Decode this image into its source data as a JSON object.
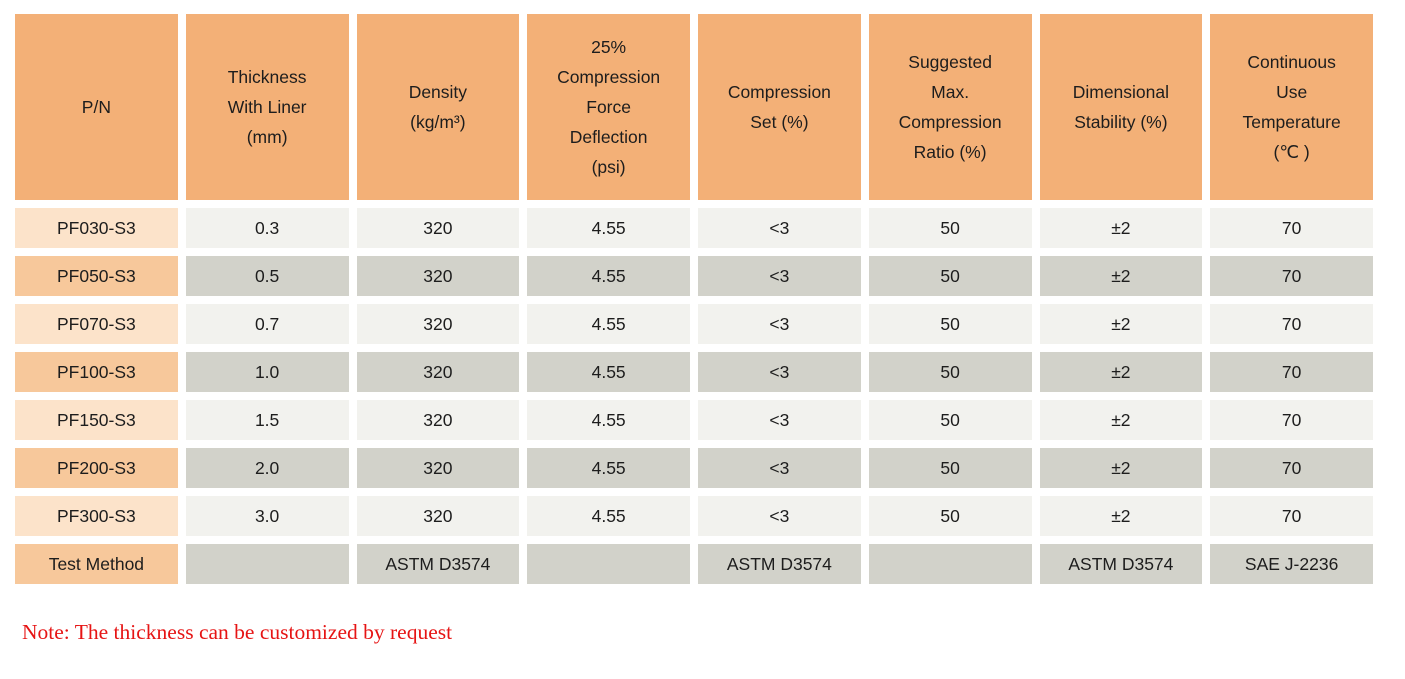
{
  "colors": {
    "header_bg": "#F3B077",
    "pn_light_bg": "#FCE3CA",
    "pn_dark_bg": "#F7C89B",
    "cell_light_bg": "#F2F2EE",
    "cell_dark_bg": "#D2D2CA",
    "text": "#1d1d1d",
    "note_red": "#E61414"
  },
  "table": {
    "headers": [
      "P/N",
      "Thickness\nWith Liner\n(mm)",
      "Density\n(kg/m³)",
      "25%\nCompression\nForce\nDeflection\n(psi)",
      "Compression\nSet (%)",
      "Suggested\nMax.\nCompression\nRatio (%)",
      "Dimensional\nStability (%)",
      "Continuous\nUse\nTemperature\n(℃ )"
    ],
    "rows": [
      {
        "pn": "PF030-S3",
        "shade": "light",
        "values": [
          "0.3",
          "320",
          "4.55",
          "<3",
          "50",
          "±2",
          "70"
        ]
      },
      {
        "pn": "PF050-S3",
        "shade": "dark",
        "values": [
          "0.5",
          "320",
          "4.55",
          "<3",
          "50",
          "±2",
          "70"
        ]
      },
      {
        "pn": "PF070-S3",
        "shade": "light",
        "values": [
          "0.7",
          "320",
          "4.55",
          "<3",
          "50",
          "±2",
          "70"
        ]
      },
      {
        "pn": "PF100-S3",
        "shade": "dark",
        "values": [
          "1.0",
          "320",
          "4.55",
          "<3",
          "50",
          "±2",
          "70"
        ]
      },
      {
        "pn": "PF150-S3",
        "shade": "light",
        "values": [
          "1.5",
          "320",
          "4.55",
          "<3",
          "50",
          "±2",
          "70"
        ]
      },
      {
        "pn": "PF200-S3",
        "shade": "dark",
        "values": [
          "2.0",
          "320",
          "4.55",
          "<3",
          "50",
          "±2",
          "70"
        ]
      },
      {
        "pn": "PF300-S3",
        "shade": "light",
        "values": [
          "3.0",
          "320",
          "4.55",
          "<3",
          "50",
          "±2",
          "70"
        ]
      },
      {
        "pn": "Test Method",
        "shade": "dark",
        "values": [
          "",
          "ASTM D3574",
          "",
          "ASTM D3574",
          "",
          "ASTM D3574",
          "SAE J-2236"
        ]
      }
    ]
  },
  "note": "Note: The thickness can be customized by request"
}
